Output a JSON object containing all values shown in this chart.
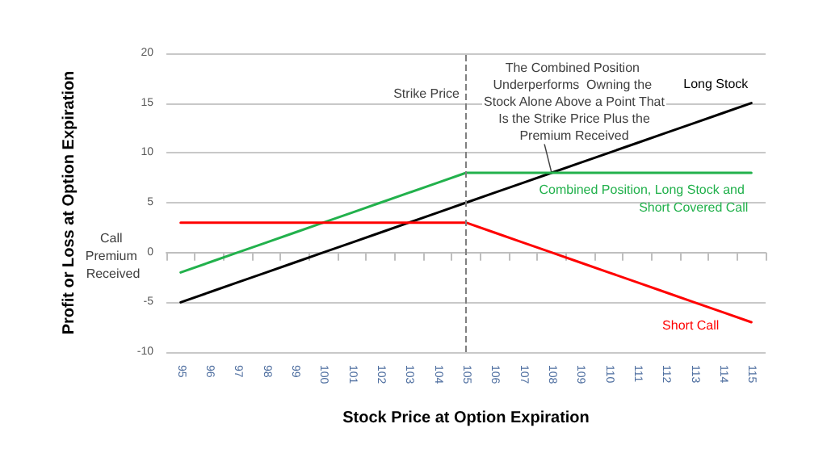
{
  "chart_data": {
    "type": "line",
    "xlabel": "Stock Price at Option Expiration",
    "ylabel": "Profit or Loss at Option Expiration",
    "categories": [
      "95",
      "96",
      "97",
      "98",
      "99",
      "100",
      "101",
      "102",
      "103",
      "104",
      "105",
      "106",
      "107",
      "108",
      "109",
      "110",
      "111",
      "112",
      "113",
      "114",
      "115"
    ],
    "series": [
      {
        "name": "Long Stock",
        "color": "#000000",
        "values": [
          -5,
          -4,
          -3,
          -2,
          -1,
          0,
          1,
          2,
          3,
          4,
          5,
          6,
          7,
          8,
          9,
          10,
          11,
          12,
          13,
          14,
          15
        ]
      },
      {
        "name": "Combined Position, Long Stock and Short Covered Call",
        "color": "#22b14c",
        "values": [
          -2,
          -1,
          0,
          1,
          2,
          3,
          4,
          5,
          6,
          7,
          8,
          8,
          8,
          8,
          8,
          8,
          8,
          8,
          8,
          8,
          8
        ]
      },
      {
        "name": "Short Call",
        "color": "#ff0000",
        "values": [
          3,
          3,
          3,
          3,
          3,
          3,
          3,
          3,
          3,
          3,
          3,
          2,
          1,
          0,
          -1,
          -2,
          -3,
          -4,
          -5,
          -6,
          -7
        ]
      }
    ],
    "ylim": [
      -10,
      20
    ],
    "yticks": [
      -10,
      -5,
      0,
      5,
      10,
      15,
      20
    ],
    "grid": "y",
    "legend": false,
    "marker": "none",
    "line_style": "solid",
    "ref_lines": [
      {
        "axis": "x",
        "value": "105",
        "label": "Strike Price",
        "color": "#808080",
        "line_style": "dashed"
      }
    ],
    "annotations": [
      {
        "text": "The Combined Position Underperforms  Owning the Stock Alone Above a Point That Is the Strike Price Plus the Premium Received",
        "x": "108",
        "y": 8
      },
      "Call Premium Received"
    ]
  }
}
